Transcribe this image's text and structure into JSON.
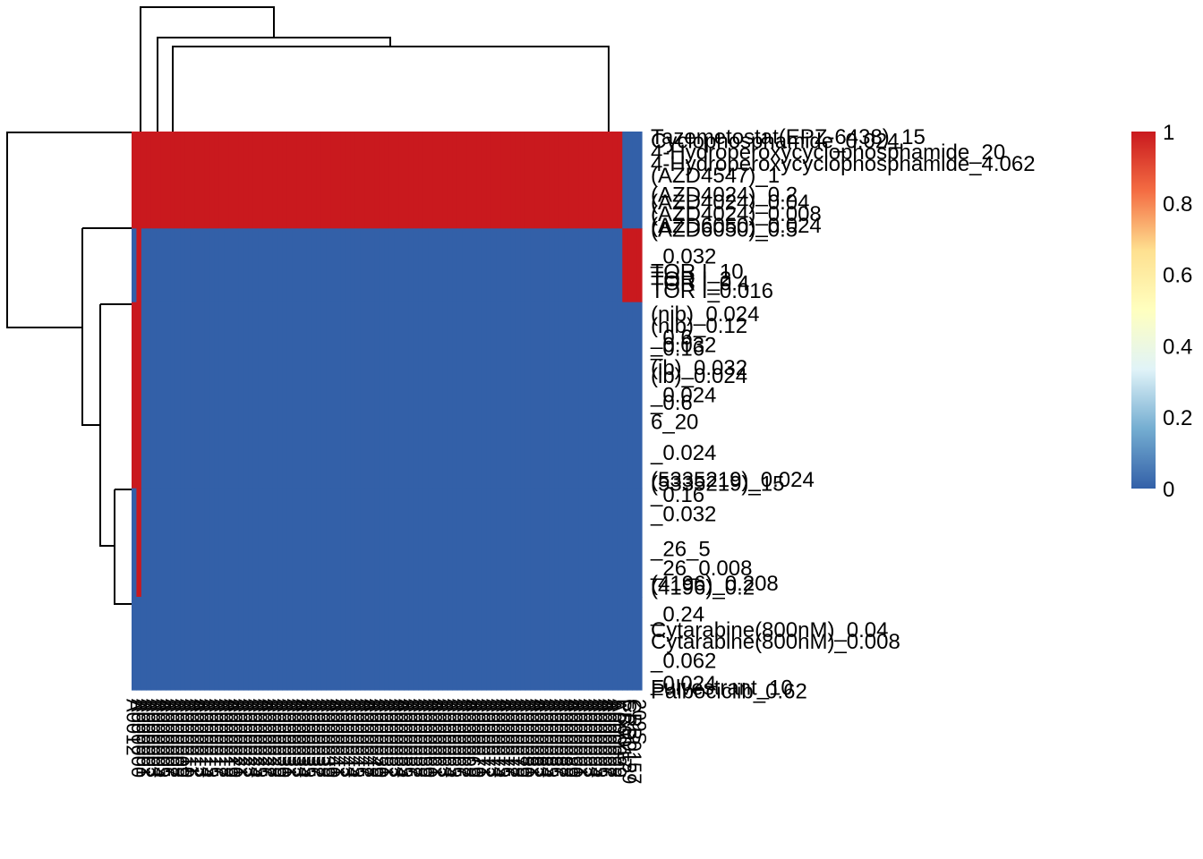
{
  "chart_data": {
    "type": "heatmap",
    "title": "",
    "xlabel": "",
    "ylabel": "",
    "colorscale": {
      "min": 0,
      "max": 1,
      "ticks": [
        "1",
        "0.8",
        "0.6",
        "0.4",
        "0.2",
        "0"
      ],
      "colors": [
        "#3360A8",
        "#74ADD1",
        "#E0F3F8",
        "#FFFFBF",
        "#FEE090",
        "#F46D43",
        "#C9191E"
      ]
    },
    "columns": [
      "A0012",
      "A000000",
      "A000001",
      "A000002",
      "A000003",
      "A000004",
      "A000005",
      "A000006",
      "A000007",
      "A000008",
      "A000009",
      "A000010",
      "A000011",
      "A000012",
      "A000013",
      "A000014",
      "A000015",
      "A000016",
      "A000017",
      "A000018",
      "A000019",
      "A000020",
      "A000021",
      "A000022",
      "A000023",
      "A000024",
      "A000025",
      "A000026",
      "A000027",
      "A000028",
      "A000029",
      "A000030",
      "A000031",
      "A000032",
      "A000033",
      "A000034",
      "A000035",
      "A000036",
      "A000037",
      "A000038",
      "A000039",
      "A000040",
      "A000041",
      "A000042",
      "A000043",
      "A000044",
      "A000045",
      "A000046",
      "A000047",
      "A000048",
      "A000049",
      "A000050",
      "A000051",
      "A000052",
      "A000053",
      "A000054",
      "A000055",
      "A000056",
      "A000057",
      "A000058",
      "A000059",
      "A000060",
      "A000061",
      "A000062",
      "A000063",
      "A000064",
      "A000065",
      "A000066",
      "A000067",
      "A000068",
      "A000069",
      "A000070",
      "A000071",
      "A000072",
      "A000073",
      "A000074",
      "A000075",
      "A000076",
      "A000077",
      "A000078",
      "A000079",
      "A000080",
      "A000081",
      "A000082",
      "A000083",
      "A000084",
      "A000085",
      "A000086",
      "A000087",
      "A000088",
      "A000089",
      "A000090",
      "A000091",
      "A000092",
      "A000093",
      "A000094",
      "A000095",
      "A000096",
      "A000097",
      "A000098",
      "A000099",
      "PB0017",
      "CRB0159",
      "CRB0157",
      "209S"
    ],
    "row_count": 144,
    "row_labels": [
      {
        "text": "Tazemetostat(EPZ-6438)_15",
        "slot": 0
      },
      {
        "text": "Cyclophosphamide_0.024",
        "slot": 1
      },
      {
        "text": "4-Hydroperoxycyclophosphamide_20",
        "slot": 4
      },
      {
        "text": "4-Hydroperoxycyclophosphamide_4.062",
        "slot": 7
      },
      {
        "text": "(AZD4547)_1",
        "slot": 10
      },
      {
        "text": "(AZD4024)_0.2",
        "slot": 15
      },
      {
        "text": "(AZD4024)_0.04",
        "slot": 17
      },
      {
        "text": "(AZD4024)_0.008",
        "slot": 20
      },
      {
        "text": "(AZD6050)_0.024",
        "slot": 23
      },
      {
        "text": "(AZD6050)_0.5",
        "slot": 24
      },
      {
        "text": "_0.032",
        "slot": 31
      },
      {
        "text": "TOR I_10",
        "slot": 35
      },
      {
        "text": "TOR I_2",
        "slot": 37
      },
      {
        "text": "TOR I_0.4",
        "slot": 38
      },
      {
        "text": "TOR I_0.016",
        "slot": 40
      },
      {
        "text": "(nib)_0.024",
        "slot": 46
      },
      {
        "text": "(nib)_0.12",
        "slot": 49
      },
      {
        "text": "_0.6",
        "slot": 52
      },
      {
        "text": "_0.032",
        "slot": 54
      },
      {
        "text": "_0.16",
        "slot": 55
      },
      {
        "text": "(ib)_0.032",
        "slot": 60
      },
      {
        "text": "(ib)_0.024",
        "slot": 62
      },
      {
        "text": "_0.024",
        "slot": 67
      },
      {
        "text": "_0.6",
        "slot": 69
      },
      {
        "text": "6_20",
        "slot": 74
      },
      {
        "text": "_0.024",
        "slot": 82
      },
      {
        "text": "(5335219)_0.024",
        "slot": 89
      },
      {
        "text": "(5335219)_15",
        "slot": 90
      },
      {
        "text": "_0.16",
        "slot": 93
      },
      {
        "text": "_0.032",
        "slot": 98
      },
      {
        "text": "_26_5",
        "slot": 107
      },
      {
        "text": "_26_0.008",
        "slot": 112
      },
      {
        "text": "(4196)_0.208",
        "slot": 116
      },
      {
        "text": "(4196)_0.2",
        "slot": 117
      },
      {
        "text": "_0.24",
        "slot": 124
      },
      {
        "text": "Cytarabine(800nM)_0.04",
        "slot": 128
      },
      {
        "text": "Cytarabine(800nM)_0.008",
        "slot": 131
      },
      {
        "text": "_0.062",
        "slot": 136
      },
      {
        "text": "_0.024",
        "slot": 142
      },
      {
        "text": "Fulvestrant_10",
        "slot": 143
      },
      {
        "text": "Palbociclib_0.62",
        "slot": 144
      }
    ],
    "row_groups": [
      {
        "rows": 25,
        "values": {
          "A0012": 1,
          "A000000": 1,
          "default": 1,
          "PB0017": 0,
          "CRB0159": 0,
          "CRB0157": 0,
          "209S": 0
        }
      },
      {
        "rows": 19,
        "values": {
          "A0012": 0,
          "A000000": 1,
          "default": 0,
          "PB0017": 1,
          "CRB0159": 1,
          "CRB0157": 1,
          "209S": 1
        }
      },
      {
        "rows": 48,
        "values": {
          "A0012": 1,
          "A000000": 1,
          "default": 0,
          "PB0017": 0,
          "CRB0159": 0,
          "CRB0157": 0,
          "209S": 0
        }
      },
      {
        "rows": 28,
        "values": {
          "A0012": 0,
          "A000000": 1,
          "default": 0,
          "PB0017": 0,
          "CRB0159": 0,
          "CRB0157": 0,
          "209S": 0
        }
      },
      {
        "rows": 24,
        "values": {
          "A0012": 0,
          "A000000": 0,
          "default": 0,
          "PB0017": 0,
          "CRB0159": 0,
          "CRB0157": 0,
          "209S": 0
        }
      }
    ]
  }
}
